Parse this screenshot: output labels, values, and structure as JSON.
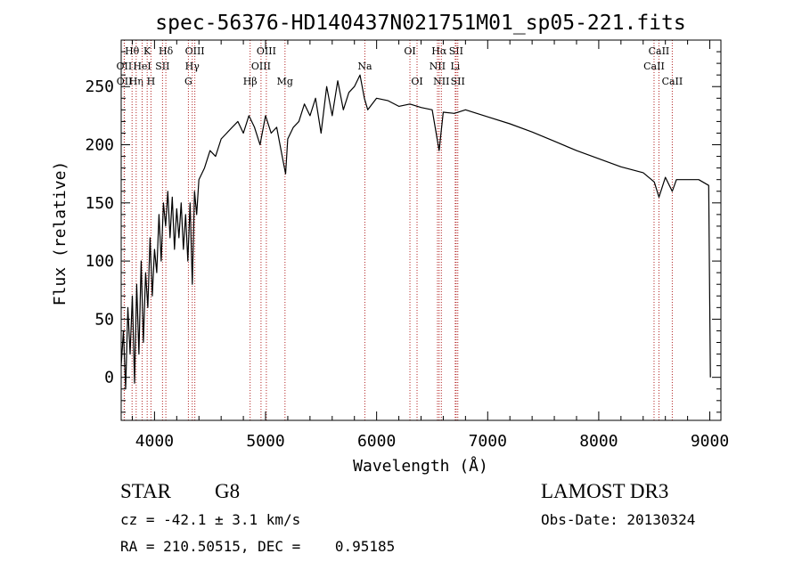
{
  "chart_data": {
    "type": "line",
    "title": "spec-56376-HD140437N021751M01_sp05-221.fits",
    "xlabel": "Wavelength (Å)",
    "ylabel": "Flux (relative)",
    "xlim": [
      3700,
      9100
    ],
    "ylim": [
      -37,
      290
    ],
    "xticks": [
      4000,
      5000,
      6000,
      7000,
      8000,
      9000
    ],
    "yticks": [
      0,
      50,
      100,
      150,
      200,
      250
    ],
    "grid": false,
    "series": [
      {
        "name": "flux",
        "x": [
          3700,
          3720,
          3740,
          3760,
          3780,
          3800,
          3820,
          3840,
          3860,
          3880,
          3900,
          3920,
          3940,
          3960,
          3980,
          4000,
          4020,
          4040,
          4060,
          4080,
          4100,
          4120,
          4140,
          4160,
          4180,
          4200,
          4220,
          4240,
          4260,
          4280,
          4300,
          4320,
          4340,
          4360,
          4380,
          4400,
          4450,
          4500,
          4550,
          4600,
          4650,
          4700,
          4750,
          4800,
          4850,
          4900,
          4950,
          5000,
          5050,
          5100,
          5150,
          5180,
          5200,
          5250,
          5300,
          5350,
          5400,
          5450,
          5500,
          5550,
          5600,
          5650,
          5700,
          5750,
          5800,
          5850,
          5890,
          5920,
          6000,
          6100,
          6200,
          6300,
          6400,
          6500,
          6563,
          6600,
          6700,
          6800,
          7000,
          7200,
          7400,
          7600,
          7800,
          8000,
          8200,
          8400,
          8500,
          8542,
          8600,
          8662,
          8700,
          8800,
          8900,
          8990,
          9000,
          9005
        ],
        "y": [
          10,
          40,
          -10,
          60,
          20,
          70,
          -5,
          80,
          20,
          100,
          30,
          90,
          60,
          120,
          70,
          110,
          90,
          140,
          100,
          150,
          130,
          160,
          120,
          155,
          110,
          145,
          120,
          150,
          110,
          140,
          100,
          150,
          80,
          160,
          140,
          170,
          180,
          195,
          190,
          205,
          210,
          215,
          220,
          210,
          225,
          215,
          200,
          225,
          210,
          215,
          190,
          175,
          205,
          215,
          220,
          235,
          225,
          240,
          210,
          250,
          225,
          255,
          230,
          245,
          250,
          260,
          240,
          230,
          240,
          238,
          233,
          235,
          232,
          230,
          195,
          228,
          227,
          230,
          224,
          218,
          211,
          203,
          195,
          188,
          181,
          176,
          168,
          155,
          172,
          160,
          170,
          170,
          170,
          165,
          60,
          0
        ]
      }
    ],
    "lines": [
      {
        "label": "Hθ",
        "x": 3798,
        "row": 1
      },
      {
        "label": "OII",
        "x": 3727,
        "row": 2
      },
      {
        "label": "OII",
        "x": 3729,
        "row": 3
      },
      {
        "label": "Hη",
        "x": 3835,
        "row": 3
      },
      {
        "label": "HeI",
        "x": 3889,
        "row": 2
      },
      {
        "label": "K",
        "x": 3934,
        "row": 1
      },
      {
        "label": "H",
        "x": 3968,
        "row": 3
      },
      {
        "label": "SII",
        "x": 4072,
        "row": 2
      },
      {
        "label": "Hδ",
        "x": 4102,
        "row": 1
      },
      {
        "label": "OIII",
        "x": 4363,
        "row": 1
      },
      {
        "label": "Hγ",
        "x": 4340,
        "row": 2
      },
      {
        "label": "G",
        "x": 4305,
        "row": 3
      },
      {
        "label": "Hβ",
        "x": 4861,
        "row": 3
      },
      {
        "label": "OIII",
        "x": 5007,
        "row": 1
      },
      {
        "label": "OIII",
        "x": 4959,
        "row": 2
      },
      {
        "label": "Mg",
        "x": 5175,
        "row": 3
      },
      {
        "label": "Na",
        "x": 5894,
        "row": 2
      },
      {
        "label": "OI",
        "x": 6300,
        "row": 1
      },
      {
        "label": "OI",
        "x": 6364,
        "row": 3
      },
      {
        "label": "Hα",
        "x": 6563,
        "row": 1
      },
      {
        "label": "SII",
        "x": 6716,
        "row": 1
      },
      {
        "label": "NII",
        "x": 6548,
        "row": 2
      },
      {
        "label": "Li",
        "x": 6708,
        "row": 2
      },
      {
        "label": "NII",
        "x": 6583,
        "row": 3
      },
      {
        "label": "SII",
        "x": 6731,
        "row": 3
      },
      {
        "label": "CaII",
        "x": 8542,
        "row": 1
      },
      {
        "label": "CaII",
        "x": 8498,
        "row": 2
      },
      {
        "label": "CaII",
        "x": 8662,
        "row": 3
      }
    ]
  },
  "info": {
    "object_class": "STAR",
    "subclass": "G8",
    "survey": "LAMOST DR3",
    "cz": "cz = -42.1 ± 3.1 km/s",
    "obs_date": "Obs-Date: 20130324",
    "coords": "RA = 210.50515, DEC =    0.95185"
  }
}
